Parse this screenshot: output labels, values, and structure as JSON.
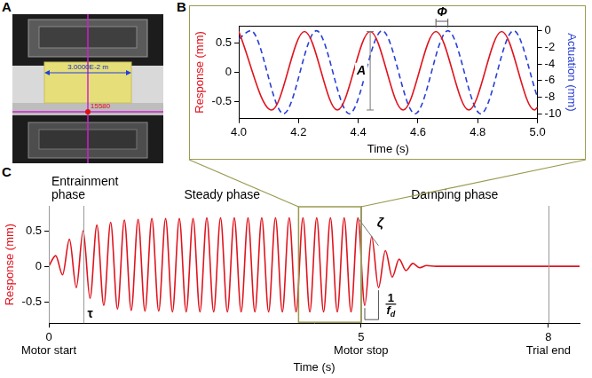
{
  "panel_a": {
    "label": "A",
    "scale_text": "3.0000E-2 m",
    "point_text": "15580"
  },
  "chart_data": [
    {
      "panel": "B",
      "type": "line",
      "x_label": "Time (s)",
      "xlim": [
        4,
        5
      ],
      "xticks": [
        {
          "value": 4,
          "label": "4.0"
        },
        {
          "value": 4.2,
          "label": "4.2"
        },
        {
          "value": 4.4,
          "label": "4.4"
        },
        {
          "value": 4.6,
          "label": "4.6"
        },
        {
          "value": 4.8,
          "label": "4.8"
        },
        {
          "value": 5,
          "label": "5.0"
        }
      ],
      "ylim": [
        -0.8,
        0.8
      ],
      "yticks": [
        -0.5,
        0,
        0.5
      ],
      "y2lim": [
        -10.6,
        0.6
      ],
      "y2ticks": [
        -10,
        -8,
        -6,
        -4,
        -2,
        0
      ],
      "grid": false,
      "amplitude_label": "A",
      "phase_label": "Φ",
      "series": [
        {
          "name": "Response (mm)",
          "color": "#e0141e",
          "line_style": "solid",
          "x": [
            4,
            4.11,
            4.22,
            4.33,
            4.44,
            4.55,
            4.66,
            4.77,
            4.88,
            4.99,
            5
          ],
          "values": [
            0.7,
            -0.65,
            0.7,
            -0.65,
            0.7,
            -0.65,
            0.7,
            -0.65,
            0.7,
            -0.65,
            -0.6
          ]
        },
        {
          "name": "Actuation (mm)",
          "color": "#2a3fd6",
          "line_style": "dashed",
          "axis": "y2",
          "x": [
            4,
            4.04,
            4.15,
            4.26,
            4.37,
            4.48,
            4.59,
            4.7,
            4.81,
            4.92,
            5
          ],
          "values": [
            -1,
            0,
            -10,
            0,
            -10,
            0,
            -10,
            0,
            -10,
            0,
            -8
          ]
        }
      ]
    },
    {
      "panel": "C",
      "type": "line",
      "x_label": "Time (s)",
      "xlim": [
        0,
        8.5
      ],
      "xticks": [
        0,
        5,
        8
      ],
      "ylim": [
        -0.8,
        0.85
      ],
      "yticks": [
        -0.5,
        0,
        0.5
      ],
      "grid": false,
      "events": [
        {
          "x": 0,
          "label": "Motor start"
        },
        {
          "x": 5,
          "label": "Motor stop"
        },
        {
          "x": 8,
          "label": "Trial end"
        }
      ],
      "phases": [
        "Entrainment phase",
        "Steady phase",
        "Damping phase"
      ],
      "tau": {
        "x": 0.55,
        "label": "τ"
      },
      "zeta_label": "ζ",
      "period_label": {
        "numerator": "1",
        "denominator": "f",
        "subscript": "d"
      },
      "series": [
        {
          "name": "Response (mm)",
          "color": "#e0141e",
          "line_style": "solid",
          "x": [
            0,
            0.11,
            0.22,
            0.33,
            0.44,
            0.55,
            0.66,
            0.77,
            0.88,
            0.99,
            1.1,
            1.21,
            1.32,
            1.43,
            1.54,
            1.65,
            1.76,
            1.87,
            1.98,
            2.09,
            2.2,
            2.31,
            2.42,
            2.53,
            2.64,
            2.75,
            2.86,
            2.97,
            3.08,
            3.19,
            3.3,
            3.41,
            3.52,
            3.63,
            3.74,
            3.85,
            3.96,
            4.07,
            4.18,
            4.29,
            4.4,
            4.51,
            4.62,
            4.73,
            4.84,
            4.95,
            5.06,
            5.17,
            5.28,
            5.39,
            5.5,
            5.61,
            5.72,
            5.83,
            5.94,
            6.05,
            6.2,
            8.5
          ],
          "values": [
            0,
            0.15,
            -0.12,
            0.38,
            -0.3,
            0.5,
            -0.45,
            0.58,
            -0.55,
            0.62,
            -0.6,
            0.65,
            -0.62,
            0.66,
            -0.63,
            0.67,
            -0.63,
            0.67,
            -0.64,
            0.67,
            -0.64,
            0.67,
            -0.64,
            0.68,
            -0.64,
            0.68,
            -0.64,
            0.68,
            -0.64,
            0.68,
            -0.64,
            0.68,
            -0.64,
            0.68,
            -0.64,
            0.68,
            -0.64,
            0.68,
            -0.64,
            0.68,
            -0.64,
            0.68,
            -0.64,
            0.68,
            -0.64,
            0.68,
            -0.55,
            0.42,
            -0.3,
            0.22,
            -0.15,
            0.1,
            -0.06,
            0.04,
            -0.02,
            0.01,
            0,
            0
          ]
        }
      ]
    }
  ]
}
